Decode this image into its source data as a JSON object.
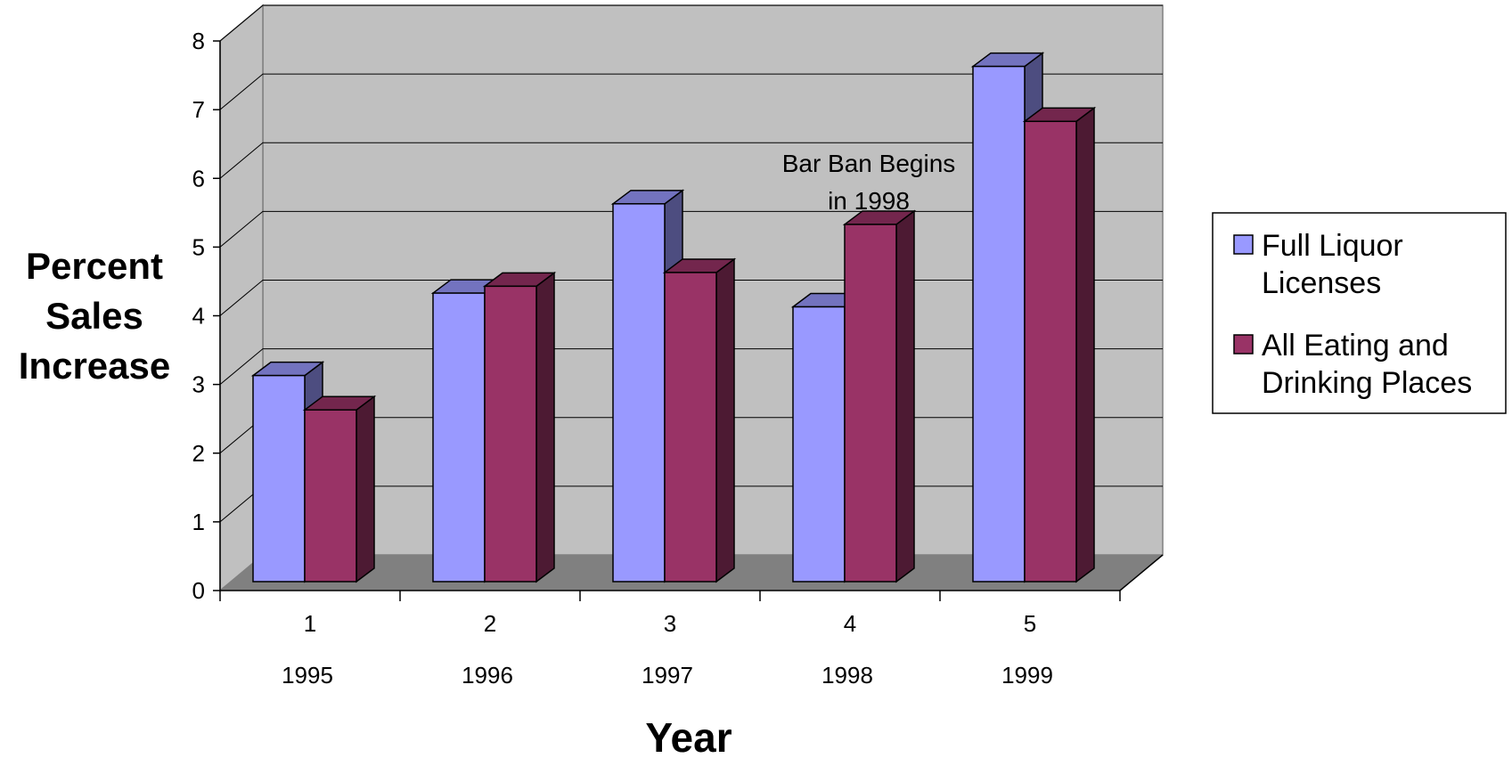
{
  "chart_data": {
    "type": "bar",
    "style": "3d-clustered-column",
    "categories": [
      "1",
      "2",
      "3",
      "4",
      "5"
    ],
    "category_years": [
      "1995",
      "1996",
      "1997",
      "1998",
      "1999"
    ],
    "series": [
      {
        "name": "Full Liquor Licenses",
        "color": "#9999ff",
        "values": [
          3.0,
          4.2,
          5.5,
          4.0,
          7.5
        ]
      },
      {
        "name": "All Eating and Drinking Places",
        "color": "#993366",
        "values": [
          2.5,
          4.3,
          4.5,
          5.2,
          6.7
        ]
      }
    ],
    "xlabel": "Year",
    "ylabel_lines": [
      "Percent",
      "Sales",
      "Increase"
    ],
    "ylim": [
      0,
      8
    ],
    "yticks": [
      "0",
      "1",
      "2",
      "3",
      "4",
      "5",
      "6",
      "7",
      "8"
    ],
    "grid": true,
    "legend_position": "right",
    "legend_lines": [
      [
        "Full Liquor",
        "Licenses"
      ],
      [
        "All Eating and",
        "Drinking Places"
      ]
    ],
    "annotation_lines": [
      "Bar Ban Begins",
      "in 1998"
    ],
    "colors": {
      "wall": "#c0c0c0",
      "floor": "#808080"
    }
  }
}
